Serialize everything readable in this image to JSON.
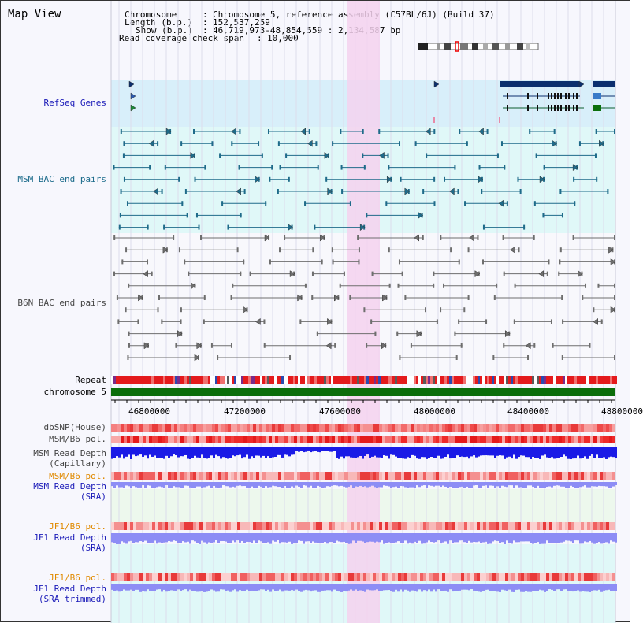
{
  "title": "Map View",
  "header": {
    "chromosome_key": "Chromosome",
    "chromosome_val": "Chromosome 5, reference assembly (C57BL/6J) (Build 37)",
    "length_key": "Length (b.p.)",
    "length_val": "152,537,259",
    "show_key": "Show (b.p.)",
    "show_val": "46,719,973-48,854,559 : 2,134,587 bp",
    "coverage_key": "Read coverage check span",
    "coverage_val": "10,000"
  },
  "tracks": {
    "refseq": "RefSeq Genes",
    "msm_bac": "MSM BAC end pairs",
    "b6n_bac": "B6N BAC end pairs",
    "repeat": "Repeat",
    "chromosome": "chromosome 5",
    "dbsnp": "dbSNP(House)",
    "msm_b6_pol_1": "MSM/B6 pol.",
    "msm_depth_cap_1": "MSM Read Depth",
    "msm_depth_cap_2": "(Capillary)",
    "msm_b6_pol_2": "MSM/B6 pol.",
    "msm_depth_sra_1": "MSM Read Depth",
    "msm_depth_sra_2": "(SRA)",
    "jf1_pol_1": "JF1/B6 pol.",
    "jf1_depth_sra_1": "JF1 Read Depth",
    "jf1_depth_sra_2": "(SRA)",
    "jf1_pol_2": "JF1/B6 pol.",
    "jf1_depth_trim_1": "JF1 Read Depth",
    "jf1_depth_trim_2": "(SRA trimmed)"
  },
  "axis": {
    "ticks": [
      "46800000",
      "47200000",
      "47600000",
      "48000000",
      "48400000",
      "48800000"
    ]
  },
  "colors": {
    "highlight": "#f5d2ee",
    "refseq_bg": "#d8effa",
    "msm_bg": "#e0f8f8",
    "chromosome": "#0b6e0b",
    "gene": "#0b2f6e",
    "msm_pair": "#1f6b8a",
    "b6n_pair": "#6e6e6e",
    "depth_blue": "#1a1ae6",
    "depth_lavender": "#8d8df5"
  }
}
